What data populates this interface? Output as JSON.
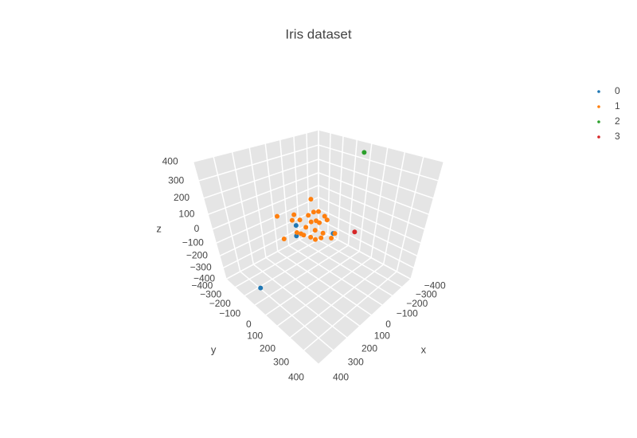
{
  "chart_data": {
    "type": "scatter3d",
    "title": "Iris dataset",
    "xlabel": "x",
    "ylabel": "y",
    "zlabel": "z",
    "xlim": [
      -400,
      400
    ],
    "ylim": [
      -400,
      400
    ],
    "zlim": [
      -400,
      400
    ],
    "xticks": [
      {
        "value": -400,
        "label": "−400"
      },
      {
        "value": -300,
        "label": "−300"
      },
      {
        "value": -200,
        "label": "−200"
      },
      {
        "value": -100,
        "label": "−100"
      },
      0,
      100,
      200,
      300,
      400
    ],
    "yticks": [
      {
        "value": -400,
        "label": "−400"
      },
      {
        "value": -300,
        "label": "−300"
      },
      {
        "value": -200,
        "label": "−200"
      },
      {
        "value": -100,
        "label": "−100"
      },
      0,
      100,
      200,
      300,
      400
    ],
    "zticks": [
      {
        "value": -400,
        "label": "−400"
      },
      {
        "value": -300,
        "label": "−300"
      },
      {
        "value": -200,
        "label": "−200"
      },
      {
        "value": -100,
        "label": "−100"
      },
      0,
      100,
      200,
      300,
      400
    ],
    "grid": true,
    "legend_position": "top-right",
    "series": [
      {
        "name": "0",
        "color": "#1f77b4",
        "x": [
          296,
          58,
          124,
          -26
        ],
        "y": [
          -188,
          -114,
          -36,
          82
        ],
        "z": [
          -400,
          0,
          0,
          0
        ]
      },
      {
        "name": "1",
        "color": "#ff7f0e",
        "x": [
          -67,
          143,
          30,
          -158,
          -68,
          -64,
          -39,
          104,
          -192,
          -32,
          -46,
          33,
          -59,
          -63,
          58,
          66,
          148,
          -70,
          -32,
          -27,
          92,
          117,
          24,
          67,
          93
        ],
        "y": [
          -126,
          -161,
          -161,
          -200,
          -68,
          -147,
          -266,
          -27,
          -139,
          -50,
          -105,
          39,
          6,
          -170,
          34,
          -101,
          28,
          -34,
          88,
          69,
          -188,
          63,
          0,
          85,
          -15
        ],
        "z": [
          120,
          80,
          40,
          -40,
          60,
          0,
          -80,
          100,
          -60,
          20,
          -20,
          80,
          40,
          -100,
          40,
          -40,
          60,
          -80,
          0,
          -40,
          -120,
          40,
          -60,
          20,
          0
        ]
      },
      {
        "name": "2",
        "color": "#2ca02c",
        "x": [
          -252
        ],
        "y": [
          64
        ],
        "z": [
          400
        ]
      },
      {
        "name": "3",
        "color": "#d62728",
        "x": [
          -116
        ],
        "y": [
          152
        ],
        "z": [
          0
        ]
      }
    ]
  }
}
